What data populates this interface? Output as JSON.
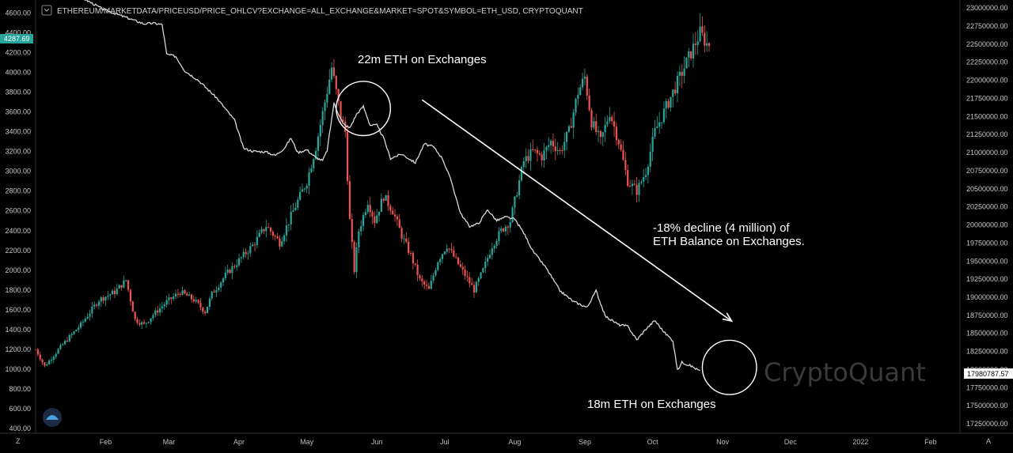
{
  "symbol_line": "ETHEREUM/MARKETDATA/PRICEUSD/PRICE_OHLCV?EXCHANGE=ALL_EXCHANGE&MARKET=SPOT&SYMBOL=ETH_USD, CRYPTOQUANT",
  "watermark": "CryptoQuant",
  "left_badge": "4287.69",
  "right_badge": "17980787.57",
  "corner_left": "Z",
  "corner_right": "A",
  "colors": {
    "up": "#26a69a",
    "down": "#ef5350",
    "line": "#d8d8d8",
    "badge_left": "#26a69a",
    "arrow": "#ffffff"
  },
  "annotations": {
    "top": "22m ETH on Exchanges",
    "bottom": "18m ETH on Exchanges",
    "decline_1": "-18% decline (4 million) of",
    "decline_2": "ETH Balance on Exchanges."
  },
  "chart_data": {
    "type": "line",
    "title": "",
    "x_ticks": [
      "Feb",
      "Mar",
      "Apr",
      "May",
      "Jun",
      "Jul",
      "Aug",
      "Sep",
      "Oct",
      "Nov",
      "Dec",
      "2022",
      "Feb"
    ],
    "x_tick_days": [
      31,
      59,
      90,
      120,
      151,
      181,
      212,
      243,
      273,
      304,
      334,
      365,
      396
    ],
    "xlim_days": [
      0,
      409
    ],
    "left_axis": {
      "label": "",
      "ticks": [
        "4600.00",
        "4400.00",
        "4200.00",
        "4000.00",
        "3800.00",
        "3600.00",
        "3400.00",
        "3200.00",
        "3000.00",
        "2800.00",
        "2600.00",
        "2400.00",
        "2200.00",
        "2000.00",
        "1800.00",
        "1600.00",
        "1400.00",
        "1200.00",
        "1000.00",
        "800.00",
        "600.00",
        "400.00"
      ],
      "ylim": [
        352,
        4732
      ]
    },
    "right_axis": {
      "label": "",
      "ticks": [
        "23000000.00",
        "22750000.00",
        "22500000.00",
        "22250000.00",
        "22000000.00",
        "21750000.00",
        "21500000.00",
        "21250000.00",
        "21000000.00",
        "20750000.00",
        "20500000.00",
        "20250000.00",
        "20000000.00",
        "19750000.00",
        "19500000.00",
        "19250000.00",
        "19000000.00",
        "18750000.00",
        "18500000.00",
        "18250000.00",
        "18000000.00",
        "17750000.00",
        "17500000.00",
        "17250000.00"
      ],
      "ylim": [
        17120000,
        23110000
      ]
    },
    "series": [
      {
        "kind": "candlestick",
        "axis": "left",
        "anchors_day_price": [
          [
            0,
            1200
          ],
          [
            4,
            1030
          ],
          [
            12,
            1250
          ],
          [
            20,
            1450
          ],
          [
            28,
            1700
          ],
          [
            35,
            1780
          ],
          [
            40,
            1900
          ],
          [
            44,
            1500
          ],
          [
            48,
            1450
          ],
          [
            52,
            1550
          ],
          [
            58,
            1680
          ],
          [
            64,
            1780
          ],
          [
            70,
            1700
          ],
          [
            75,
            1580
          ],
          [
            78,
            1760
          ],
          [
            84,
            1950
          ],
          [
            90,
            2100
          ],
          [
            96,
            2250
          ],
          [
            102,
            2450
          ],
          [
            108,
            2280
          ],
          [
            114,
            2600
          ],
          [
            120,
            2900
          ],
          [
            124,
            3250
          ],
          [
            128,
            3700
          ],
          [
            131,
            4050
          ],
          [
            133,
            3800
          ],
          [
            135,
            3550
          ],
          [
            137,
            3400
          ],
          [
            139,
            2500
          ],
          [
            141,
            2000
          ],
          [
            143,
            2400
          ],
          [
            147,
            2700
          ],
          [
            150,
            2500
          ],
          [
            154,
            2750
          ],
          [
            158,
            2600
          ],
          [
            162,
            2350
          ],
          [
            166,
            2150
          ],
          [
            170,
            1900
          ],
          [
            174,
            1800
          ],
          [
            178,
            2100
          ],
          [
            182,
            2250
          ],
          [
            186,
            2100
          ],
          [
            190,
            1950
          ],
          [
            194,
            1800
          ],
          [
            198,
            2000
          ],
          [
            202,
            2250
          ],
          [
            206,
            2400
          ],
          [
            210,
            2500
          ],
          [
            213,
            2800
          ],
          [
            216,
            3100
          ],
          [
            220,
            3200
          ],
          [
            224,
            3150
          ],
          [
            228,
            3300
          ],
          [
            232,
            3200
          ],
          [
            236,
            3400
          ],
          [
            240,
            3800
          ],
          [
            243,
            3950
          ],
          [
            246,
            3500
          ],
          [
            250,
            3300
          ],
          [
            254,
            3600
          ],
          [
            258,
            3300
          ],
          [
            262,
            2900
          ],
          [
            266,
            2800
          ],
          [
            270,
            3000
          ],
          [
            274,
            3400
          ],
          [
            278,
            3600
          ],
          [
            282,
            3800
          ],
          [
            286,
            4000
          ],
          [
            290,
            4200
          ],
          [
            294,
            4400
          ],
          [
            298,
            4250
          ]
        ],
        "close": 4287.69
      },
      {
        "kind": "line",
        "axis": "right",
        "anchors_day_balance": [
          [
            0,
            23300000
          ],
          [
            20,
            23150000
          ],
          [
            30,
            22980000
          ],
          [
            40,
            22870000
          ],
          [
            48,
            22780000
          ],
          [
            52,
            22790000
          ],
          [
            56,
            22770000
          ],
          [
            58,
            22360000
          ],
          [
            62,
            22330000
          ],
          [
            66,
            22130000
          ],
          [
            72,
            22000000
          ],
          [
            80,
            21760000
          ],
          [
            88,
            21450000
          ],
          [
            92,
            21060000
          ],
          [
            96,
            21020000
          ],
          [
            102,
            21010000
          ],
          [
            106,
            20960000
          ],
          [
            110,
            21060000
          ],
          [
            113,
            21200000
          ],
          [
            116,
            21000000
          ],
          [
            120,
            21040000
          ],
          [
            124,
            20930000
          ],
          [
            127,
            20890000
          ],
          [
            129,
            21030000
          ],
          [
            132,
            21680000
          ],
          [
            136,
            21400000
          ],
          [
            139,
            21340000
          ],
          [
            142,
            21530000
          ],
          [
            145,
            21640000
          ],
          [
            148,
            21380000
          ],
          [
            151,
            21380000
          ],
          [
            154,
            21200000
          ],
          [
            157,
            20920000
          ],
          [
            162,
            20980000
          ],
          [
            168,
            20860000
          ],
          [
            172,
            21120000
          ],
          [
            176,
            21080000
          ],
          [
            180,
            20920000
          ],
          [
            184,
            20600000
          ],
          [
            188,
            20160000
          ],
          [
            192,
            19980000
          ],
          [
            196,
            20020000
          ],
          [
            200,
            20210000
          ],
          [
            204,
            20060000
          ],
          [
            208,
            20110000
          ],
          [
            212,
            20080000
          ],
          [
            216,
            19890000
          ],
          [
            220,
            19640000
          ],
          [
            226,
            19400000
          ],
          [
            232,
            19090000
          ],
          [
            238,
            18940000
          ],
          [
            244,
            18860000
          ],
          [
            248,
            19090000
          ],
          [
            252,
            18740000
          ],
          [
            258,
            18620000
          ],
          [
            262,
            18600000
          ],
          [
            266,
            18410000
          ],
          [
            270,
            18560000
          ],
          [
            274,
            18680000
          ],
          [
            278,
            18520000
          ],
          [
            282,
            18400000
          ],
          [
            284,
            17990000
          ],
          [
            286,
            18100000
          ],
          [
            290,
            18050000
          ],
          [
            294,
            17980000
          ]
        ],
        "last": 17980787.57
      }
    ],
    "trend_arrow": {
      "from": [
        171,
        21730000
      ],
      "to": [
        308,
        18670000
      ]
    },
    "circles": [
      {
        "center": [
          145,
          21610000
        ],
        "radius_days": 12
      },
      {
        "center": [
          307,
          18030000
        ],
        "radius_days": 12
      }
    ]
  }
}
